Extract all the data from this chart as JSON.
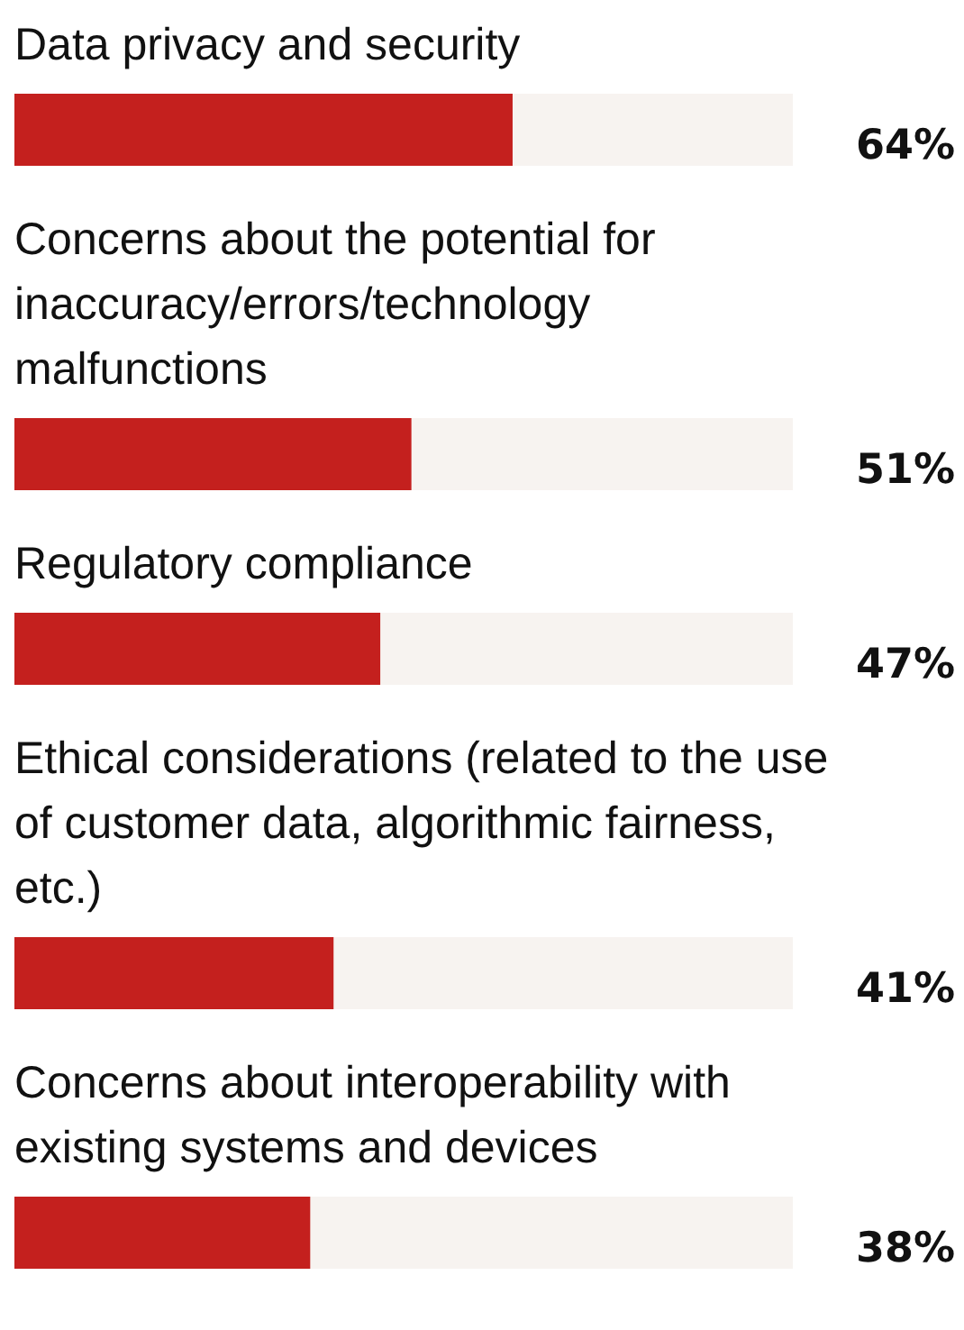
{
  "chart_data": {
    "type": "bar",
    "orientation": "horizontal",
    "categories": [
      "Data privacy and security",
      "Concerns about the potential for inaccuracy/errors/technology malfunctions",
      "Regulatory compliance",
      "Ethical considerations (related to the use of customer data, algorithmic fairness, etc.)",
      "Concerns about interoperability with existing systems and devices"
    ],
    "values": [
      64,
      51,
      47,
      41,
      38
    ],
    "value_labels": [
      "64%",
      "51%",
      "47%",
      "41%",
      "38%"
    ],
    "color": "#c4201e",
    "xlim": [
      0,
      100
    ],
    "tick_labels": false
  }
}
